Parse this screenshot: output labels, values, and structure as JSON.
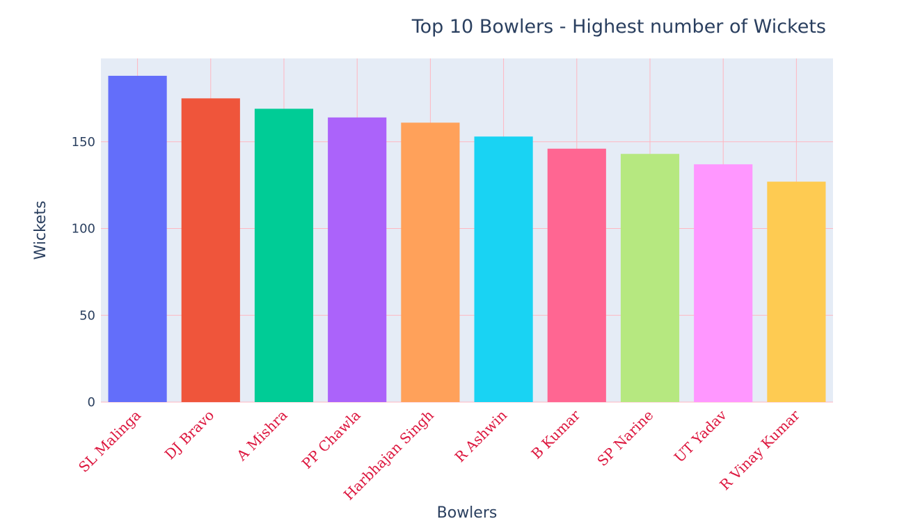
{
  "chart_data": {
    "type": "bar",
    "title": "Top 10 Bowlers - Highest number of Wickets",
    "xlabel": "Bowlers",
    "ylabel": "Wickets",
    "categories": [
      "SL Malinga",
      "DJ Bravo",
      "A Mishra",
      "PP Chawla",
      "Harbhajan Singh",
      "R Ashwin",
      "B Kumar",
      "SP Narine",
      "UT Yadav",
      "R Vinay Kumar"
    ],
    "values": [
      188,
      175,
      169,
      164,
      161,
      153,
      146,
      143,
      137,
      127
    ],
    "colors": [
      "#636efa",
      "#ef553b",
      "#00cc96",
      "#ab63fa",
      "#ffa15a",
      "#19d3f3",
      "#ff6692",
      "#b6e880",
      "#ff97ff",
      "#fecb52"
    ],
    "ylim": [
      0,
      198
    ],
    "yticks": [
      0,
      50,
      100,
      150
    ],
    "grid": true,
    "grid_color": "#ffb6c1",
    "plot_bg": "#e5ecf6",
    "tick_label_color": "#dc143c"
  }
}
